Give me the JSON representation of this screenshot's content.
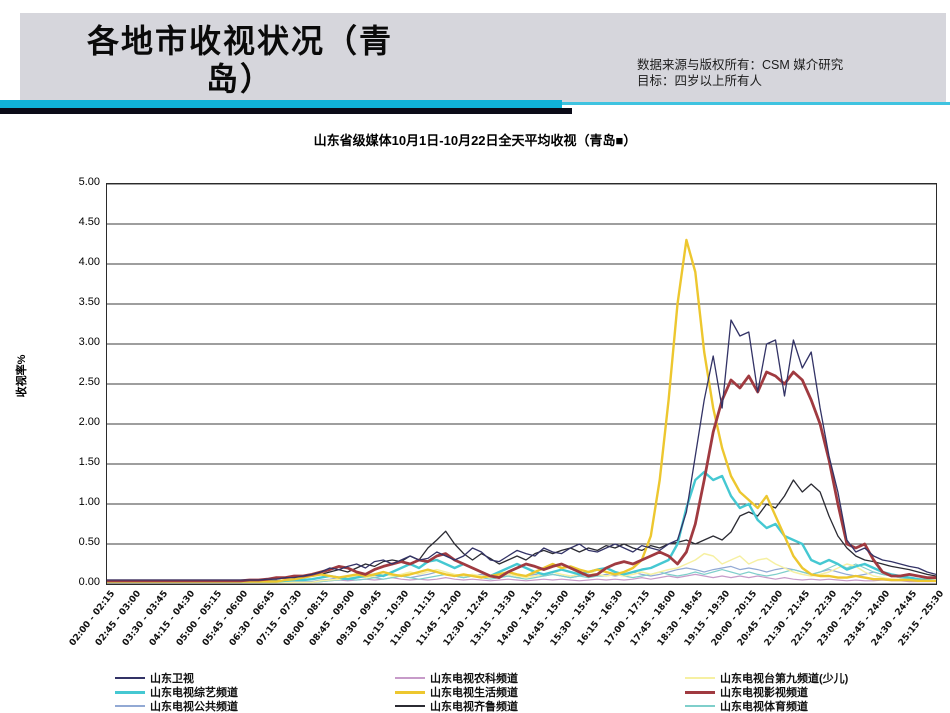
{
  "header": {
    "title_line1": "各地市收视状况（青",
    "title_line2": "岛）",
    "source_line1": "数据来源与版权所有：CSM 媒介研究",
    "source_line2": "目标：四岁以上所有人"
  },
  "chart_data": {
    "type": "line",
    "title": "山东省级媒体10月1日-10月22日全天平均收视（青岛■）",
    "xlabel": "",
    "ylabel": "收视率%",
    "ylim": [
      0,
      5
    ],
    "grid": "horizontal",
    "legend_position": "bottom",
    "y_ticks": [
      "5.00",
      "4.50",
      "4.00",
      "3.50",
      "3.00",
      "2.50",
      "2.00",
      "1.50",
      "1.00",
      "0.50",
      "0.00"
    ],
    "x_tick_labels": [
      "02:00 - 02:15",
      "02:45 - 03:00",
      "03:30 - 03:45",
      "04:15 - 04:30",
      "05:00 - 05:15",
      "05:45 - 06:00",
      "06:30 - 06:45",
      "07:15 - 07:30",
      "08:00 - 08:15",
      "08:45 - 09:00",
      "09:30 - 09:45",
      "10:15 - 10:30",
      "11:00 - 11:15",
      "11:45 - 12:00",
      "12:30 - 12:45",
      "13:15 - 13:30",
      "14:00 - 14:15",
      "14:45 - 15:00",
      "15:30 - 15:45",
      "16:15 - 16:30",
      "17:00 - 17:15",
      "17:45 - 18:00",
      "18:30 - 18:45",
      "19:15 - 19:30",
      "20:00 - 20:15",
      "20:45 - 21:00",
      "21:30 - 21:45",
      "22:15 - 22:30",
      "23:00 - 23:15",
      "23:45 - 24:00",
      "24:30 - 24:45",
      "25:15 - 25:30"
    ],
    "points_per_series": 94,
    "series": [
      {
        "name": "山东卫视",
        "color": "#333366",
        "stroke_width": 1.3,
        "values": [
          0.05,
          0.05,
          0.05,
          0.05,
          0.05,
          0.05,
          0.05,
          0.05,
          0.05,
          0.05,
          0.05,
          0.05,
          0.05,
          0.05,
          0.05,
          0.05,
          0.05,
          0.05,
          0.06,
          0.06,
          0.08,
          0.08,
          0.1,
          0.12,
          0.15,
          0.2,
          0.18,
          0.22,
          0.25,
          0.2,
          0.28,
          0.3,
          0.25,
          0.3,
          0.35,
          0.3,
          0.32,
          0.4,
          0.35,
          0.3,
          0.35,
          0.45,
          0.4,
          0.3,
          0.28,
          0.35,
          0.42,
          0.38,
          0.35,
          0.45,
          0.4,
          0.38,
          0.45,
          0.5,
          0.42,
          0.4,
          0.45,
          0.5,
          0.45,
          0.4,
          0.48,
          0.45,
          0.42,
          0.5,
          0.55,
          0.9,
          1.6,
          2.3,
          2.85,
          2.2,
          3.3,
          3.1,
          3.15,
          2.4,
          3.0,
          3.05,
          2.35,
          3.05,
          2.7,
          2.9,
          2.2,
          1.6,
          1.15,
          0.55,
          0.4,
          0.45,
          0.35,
          0.3,
          0.28,
          0.25,
          0.22,
          0.2,
          0.15,
          0.12
        ]
      },
      {
        "name": "山东电视综艺频道",
        "color": "#45C8D2",
        "stroke_width": 2.4,
        "values": [
          0.03,
          0.03,
          0.03,
          0.03,
          0.03,
          0.03,
          0.03,
          0.03,
          0.03,
          0.03,
          0.03,
          0.03,
          0.03,
          0.03,
          0.03,
          0.03,
          0.03,
          0.03,
          0.03,
          0.03,
          0.04,
          0.05,
          0.05,
          0.06,
          0.08,
          0.1,
          0.08,
          0.06,
          0.08,
          0.1,
          0.12,
          0.1,
          0.15,
          0.2,
          0.25,
          0.2,
          0.28,
          0.3,
          0.25,
          0.2,
          0.25,
          0.2,
          0.15,
          0.1,
          0.15,
          0.2,
          0.25,
          0.2,
          0.15,
          0.12,
          0.15,
          0.18,
          0.15,
          0.12,
          0.15,
          0.18,
          0.2,
          0.15,
          0.12,
          0.15,
          0.18,
          0.2,
          0.25,
          0.3,
          0.5,
          0.95,
          1.3,
          1.4,
          1.3,
          1.35,
          1.1,
          0.95,
          1.0,
          0.8,
          0.7,
          0.75,
          0.6,
          0.55,
          0.5,
          0.3,
          0.25,
          0.3,
          0.25,
          0.18,
          0.22,
          0.25,
          0.2,
          0.15,
          0.12,
          0.1,
          0.08,
          0.06,
          0.05,
          0.04
        ]
      },
      {
        "name": "山东电视公共频道",
        "color": "#92A9D4",
        "stroke_width": 1.2,
        "values": [
          0.03,
          0.03,
          0.03,
          0.03,
          0.03,
          0.03,
          0.03,
          0.03,
          0.03,
          0.03,
          0.03,
          0.03,
          0.03,
          0.03,
          0.03,
          0.03,
          0.03,
          0.03,
          0.03,
          0.03,
          0.03,
          0.03,
          0.03,
          0.03,
          0.05,
          0.06,
          0.08,
          0.06,
          0.08,
          0.1,
          0.08,
          0.1,
          0.12,
          0.1,
          0.08,
          0.1,
          0.12,
          0.15,
          0.12,
          0.1,
          0.08,
          0.1,
          0.12,
          0.1,
          0.08,
          0.1,
          0.08,
          0.1,
          0.12,
          0.1,
          0.12,
          0.1,
          0.08,
          0.1,
          0.12,
          0.1,
          0.12,
          0.1,
          0.12,
          0.15,
          0.12,
          0.1,
          0.12,
          0.15,
          0.18,
          0.2,
          0.18,
          0.15,
          0.18,
          0.2,
          0.22,
          0.18,
          0.2,
          0.18,
          0.15,
          0.18,
          0.2,
          0.18,
          0.15,
          0.12,
          0.15,
          0.18,
          0.15,
          0.12,
          0.1,
          0.12,
          0.15,
          0.12,
          0.1,
          0.08,
          0.08,
          0.06,
          0.05,
          0.05
        ]
      },
      {
        "name": "山东电视农科频道",
        "color": "#C79BC9",
        "stroke_width": 1.2,
        "values": [
          0.02,
          0.02,
          0.02,
          0.02,
          0.02,
          0.02,
          0.02,
          0.02,
          0.02,
          0.02,
          0.02,
          0.02,
          0.02,
          0.02,
          0.02,
          0.02,
          0.02,
          0.02,
          0.02,
          0.02,
          0.02,
          0.02,
          0.02,
          0.02,
          0.03,
          0.04,
          0.05,
          0.04,
          0.05,
          0.06,
          0.05,
          0.06,
          0.08,
          0.06,
          0.05,
          0.06,
          0.05,
          0.06,
          0.08,
          0.06,
          0.05,
          0.06,
          0.05,
          0.04,
          0.05,
          0.06,
          0.05,
          0.04,
          0.05,
          0.06,
          0.05,
          0.06,
          0.05,
          0.04,
          0.05,
          0.06,
          0.05,
          0.06,
          0.05,
          0.06,
          0.08,
          0.06,
          0.08,
          0.1,
          0.08,
          0.1,
          0.12,
          0.1,
          0.08,
          0.1,
          0.08,
          0.1,
          0.08,
          0.1,
          0.08,
          0.06,
          0.08,
          0.06,
          0.05,
          0.06,
          0.05,
          0.06,
          0.05,
          0.04,
          0.05,
          0.04,
          0.04,
          0.05,
          0.04,
          0.04,
          0.03,
          0.03,
          0.03,
          0.03
        ]
      },
      {
        "name": "山东电视生活频道",
        "color": "#EDC72F",
        "stroke_width": 2.4,
        "values": [
          0.03,
          0.03,
          0.03,
          0.03,
          0.03,
          0.03,
          0.03,
          0.03,
          0.03,
          0.03,
          0.03,
          0.03,
          0.03,
          0.03,
          0.03,
          0.03,
          0.03,
          0.03,
          0.03,
          0.03,
          0.05,
          0.06,
          0.08,
          0.1,
          0.12,
          0.1,
          0.08,
          0.1,
          0.12,
          0.1,
          0.12,
          0.15,
          0.12,
          0.1,
          0.12,
          0.15,
          0.18,
          0.15,
          0.12,
          0.1,
          0.12,
          0.1,
          0.08,
          0.1,
          0.12,
          0.15,
          0.12,
          0.1,
          0.15,
          0.2,
          0.25,
          0.2,
          0.22,
          0.18,
          0.15,
          0.18,
          0.15,
          0.12,
          0.15,
          0.2,
          0.3,
          0.6,
          1.3,
          2.3,
          3.5,
          4.3,
          3.9,
          2.9,
          2.2,
          1.7,
          1.35,
          1.15,
          1.05,
          0.95,
          1.1,
          0.85,
          0.6,
          0.35,
          0.2,
          0.12,
          0.1,
          0.1,
          0.08,
          0.08,
          0.1,
          0.08,
          0.06,
          0.06,
          0.05,
          0.05,
          0.05,
          0.04,
          0.04,
          0.04
        ]
      },
      {
        "name": "山东电视齐鲁频道",
        "color": "#2B2B33",
        "stroke_width": 1.3,
        "values": [
          0.04,
          0.04,
          0.04,
          0.04,
          0.04,
          0.04,
          0.04,
          0.04,
          0.04,
          0.04,
          0.04,
          0.04,
          0.04,
          0.04,
          0.04,
          0.04,
          0.04,
          0.04,
          0.04,
          0.04,
          0.05,
          0.06,
          0.08,
          0.1,
          0.12,
          0.15,
          0.18,
          0.15,
          0.2,
          0.25,
          0.22,
          0.28,
          0.3,
          0.28,
          0.35,
          0.3,
          0.45,
          0.55,
          0.66,
          0.5,
          0.38,
          0.3,
          0.38,
          0.32,
          0.25,
          0.3,
          0.35,
          0.3,
          0.38,
          0.42,
          0.38,
          0.42,
          0.45,
          0.4,
          0.45,
          0.42,
          0.48,
          0.45,
          0.5,
          0.45,
          0.42,
          0.48,
          0.45,
          0.5,
          0.52,
          0.55,
          0.5,
          0.55,
          0.6,
          0.55,
          0.65,
          0.85,
          0.9,
          0.85,
          1.0,
          0.95,
          1.1,
          1.3,
          1.15,
          1.25,
          1.15,
          0.85,
          0.6,
          0.45,
          0.35,
          0.3,
          0.28,
          0.25,
          0.22,
          0.2,
          0.18,
          0.15,
          0.12,
          0.1
        ]
      },
      {
        "name": "山东电视台第九频道(少儿)",
        "color": "#F6F0A2",
        "stroke_width": 1.5,
        "values": [
          0.02,
          0.02,
          0.02,
          0.02,
          0.02,
          0.02,
          0.02,
          0.02,
          0.02,
          0.02,
          0.02,
          0.02,
          0.02,
          0.02,
          0.02,
          0.02,
          0.02,
          0.02,
          0.02,
          0.02,
          0.02,
          0.02,
          0.02,
          0.02,
          0.04,
          0.05,
          0.06,
          0.08,
          0.1,
          0.08,
          0.1,
          0.12,
          0.1,
          0.12,
          0.15,
          0.12,
          0.15,
          0.18,
          0.15,
          0.12,
          0.1,
          0.12,
          0.1,
          0.08,
          0.1,
          0.12,
          0.1,
          0.08,
          0.1,
          0.12,
          0.15,
          0.12,
          0.1,
          0.12,
          0.15,
          0.12,
          0.1,
          0.12,
          0.1,
          0.12,
          0.15,
          0.12,
          0.15,
          0.18,
          0.2,
          0.25,
          0.3,
          0.38,
          0.35,
          0.25,
          0.3,
          0.35,
          0.25,
          0.3,
          0.32,
          0.25,
          0.2,
          0.15,
          0.12,
          0.1,
          0.12,
          0.15,
          0.2,
          0.25,
          0.22,
          0.15,
          0.1,
          0.08,
          0.06,
          0.05,
          0.05,
          0.04,
          0.04,
          0.03
        ]
      },
      {
        "name": "山东电视影视频道",
        "color": "#A03A40",
        "stroke_width": 2.8,
        "values": [
          0.04,
          0.04,
          0.04,
          0.04,
          0.04,
          0.04,
          0.04,
          0.04,
          0.04,
          0.04,
          0.04,
          0.04,
          0.04,
          0.04,
          0.04,
          0.04,
          0.05,
          0.05,
          0.06,
          0.08,
          0.08,
          0.1,
          0.1,
          0.12,
          0.15,
          0.18,
          0.22,
          0.2,
          0.15,
          0.12,
          0.18,
          0.22,
          0.25,
          0.28,
          0.25,
          0.3,
          0.28,
          0.35,
          0.38,
          0.3,
          0.25,
          0.2,
          0.15,
          0.1,
          0.08,
          0.15,
          0.2,
          0.25,
          0.22,
          0.18,
          0.22,
          0.25,
          0.2,
          0.15,
          0.1,
          0.12,
          0.2,
          0.25,
          0.28,
          0.25,
          0.3,
          0.35,
          0.4,
          0.35,
          0.25,
          0.4,
          0.75,
          1.3,
          1.9,
          2.3,
          2.55,
          2.45,
          2.6,
          2.4,
          2.65,
          2.6,
          2.5,
          2.65,
          2.55,
          2.3,
          2.0,
          1.55,
          1.0,
          0.5,
          0.45,
          0.5,
          0.3,
          0.15,
          0.1,
          0.1,
          0.12,
          0.1,
          0.08,
          0.08
        ]
      },
      {
        "name": "山东电视体育频道",
        "color": "#7FCFCB",
        "stroke_width": 1.2,
        "values": [
          0.02,
          0.02,
          0.02,
          0.02,
          0.02,
          0.02,
          0.02,
          0.02,
          0.02,
          0.02,
          0.02,
          0.02,
          0.02,
          0.02,
          0.02,
          0.02,
          0.02,
          0.02,
          0.02,
          0.02,
          0.02,
          0.02,
          0.02,
          0.02,
          0.03,
          0.04,
          0.05,
          0.06,
          0.05,
          0.06,
          0.08,
          0.06,
          0.08,
          0.1,
          0.08,
          0.06,
          0.08,
          0.1,
          0.12,
          0.1,
          0.08,
          0.1,
          0.08,
          0.06,
          0.08,
          0.1,
          0.08,
          0.06,
          0.08,
          0.1,
          0.12,
          0.1,
          0.08,
          0.1,
          0.08,
          0.1,
          0.1,
          0.12,
          0.1,
          0.08,
          0.1,
          0.12,
          0.15,
          0.12,
          0.1,
          0.12,
          0.15,
          0.12,
          0.15,
          0.18,
          0.15,
          0.12,
          0.15,
          0.12,
          0.1,
          0.12,
          0.15,
          0.18,
          0.15,
          0.12,
          0.15,
          0.2,
          0.25,
          0.2,
          0.25,
          0.2,
          0.15,
          0.12,
          0.1,
          0.08,
          0.06,
          0.05,
          0.05,
          0.04
        ]
      }
    ]
  }
}
